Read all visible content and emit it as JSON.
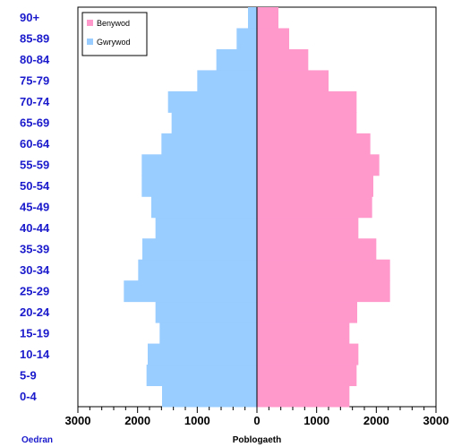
{
  "chart_data": {
    "type": "bar",
    "orientation": "horizontal",
    "layout": "population-pyramid",
    "categories": [
      "0-4",
      "5-9",
      "10-14",
      "15-19",
      "20-24",
      "25-29",
      "30-34",
      "35-39",
      "40-44",
      "45-49",
      "50-54",
      "55-59",
      "60-64",
      "65-69",
      "70-74",
      "75-79",
      "80-84",
      "85-89",
      "90+"
    ],
    "series": [
      {
        "name": "Benywod",
        "side": "right",
        "color": "#ff99cc",
        "values": [
          1550,
          1670,
          1700,
          1550,
          1680,
          2230,
          2230,
          2000,
          1700,
          1930,
          1950,
          2050,
          1900,
          1670,
          1670,
          1200,
          860,
          540,
          360
        ]
      },
      {
        "name": "Gwrywod",
        "side": "left",
        "color": "#99ccff",
        "values": [
          1590,
          1850,
          1830,
          1630,
          1700,
          2230,
          1990,
          1920,
          1700,
          1770,
          1930,
          1930,
          1600,
          1430,
          1490,
          1000,
          680,
          340,
          150
        ]
      }
    ],
    "xlim": [
      -3000,
      3000
    ],
    "xticks": [
      -3000,
      -2000,
      -1000,
      0,
      1000,
      2000,
      3000
    ],
    "xtick_labels": [
      "3000",
      "2000",
      "1000",
      "0",
      "1000",
      "2000",
      "3000"
    ],
    "xlabel": "Poblogaeth",
    "ylabel": "Oedran",
    "grid": false,
    "legend": "top-left"
  }
}
